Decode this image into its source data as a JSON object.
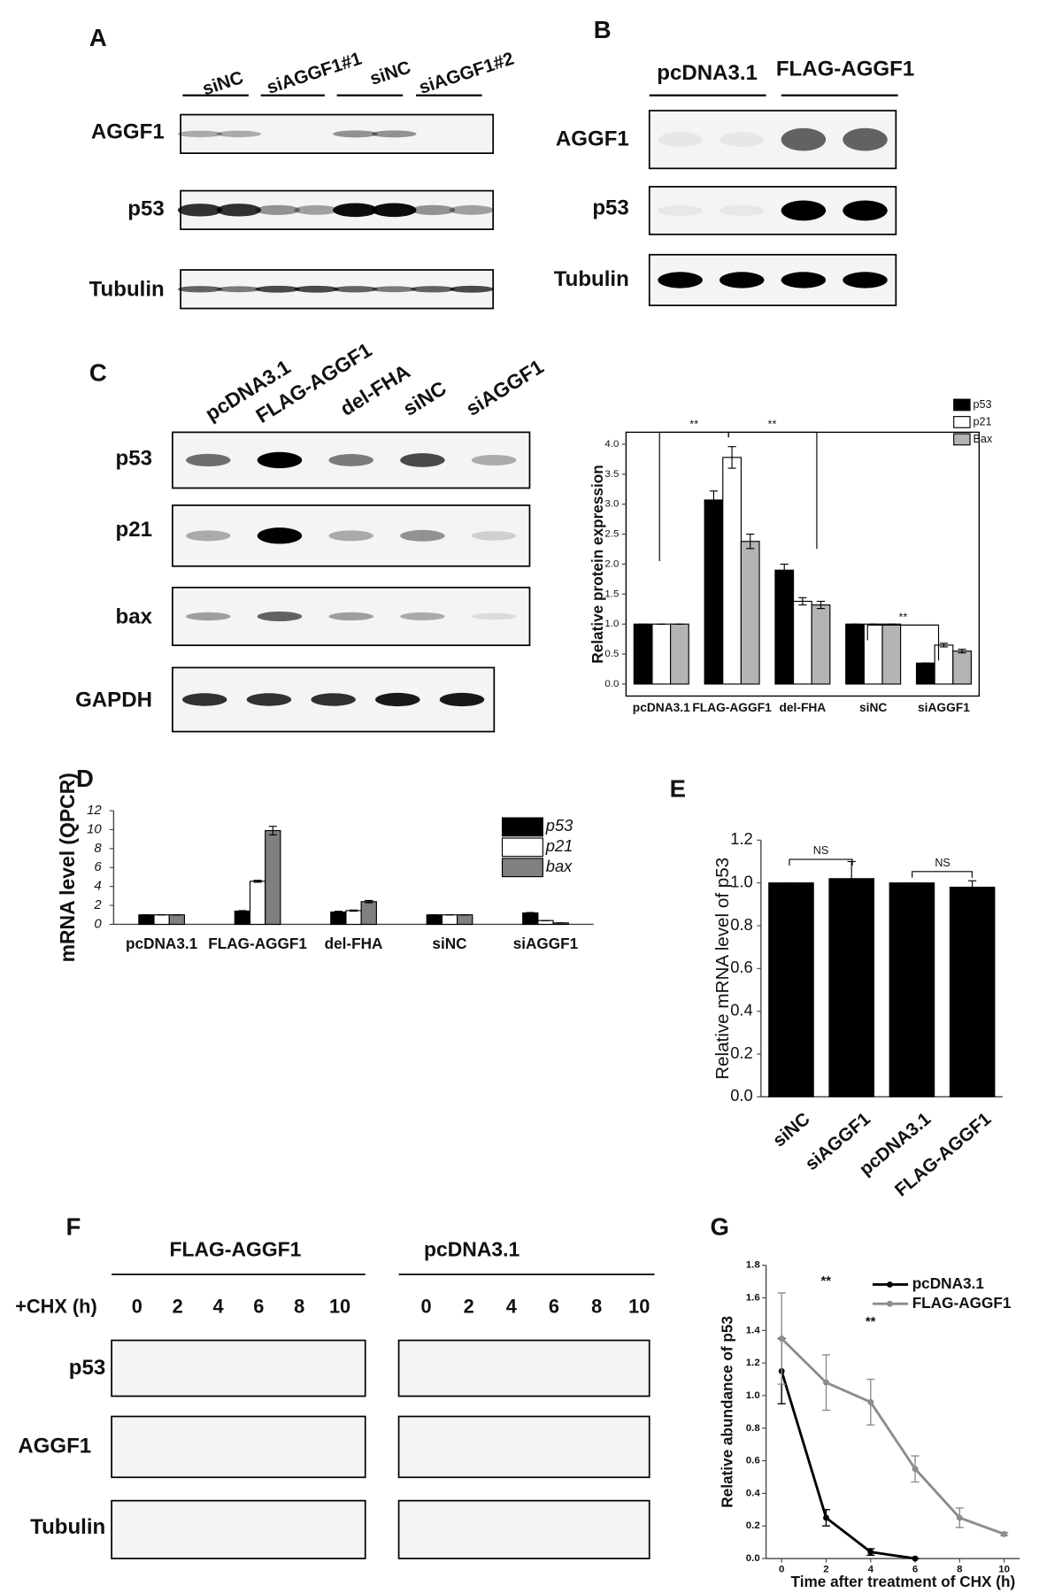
{
  "panel_labels": [
    "A",
    "B",
    "C",
    "D",
    "E",
    "F",
    "G"
  ],
  "blots": {
    "A": {
      "lanes": [
        "siNC",
        "siAGGF1#1",
        "siNC",
        "siAGGF1#2"
      ],
      "rows": [
        "AGGF1",
        "p53",
        "Tubulin"
      ]
    },
    "B": {
      "lanes": [
        "pcDNA3.1",
        "FLAG-AGGF1"
      ],
      "rows": [
        "AGGF1",
        "p53",
        "Tubulin"
      ]
    },
    "C": {
      "lanes": [
        "pcDNA3.1",
        "FLAG-AGGF1",
        "del-FHA",
        "siNC",
        "siAGGF1"
      ],
      "rows": [
        "p53",
        "p21",
        "bax",
        "GAPDH"
      ]
    },
    "F": {
      "groups": [
        "FLAG-AGGF1",
        "pcDNA3.1"
      ],
      "time_label": "+CHX (h)",
      "times": [
        "0",
        "2",
        "4",
        "6",
        "8",
        "10"
      ],
      "rows": [
        "p53",
        "AGGF1",
        "Tubulin"
      ]
    }
  },
  "chart_data": [
    {
      "type": "bar",
      "ylabel": "Relative protein expression",
      "categories": [
        "pcDNA3.1",
        "FLAG-AGGF1",
        "del-FHA",
        "siNC",
        "siAGGF1"
      ],
      "series": [
        {
          "name": "p53",
          "color": "#000000",
          "values": [
            1,
            3.07,
            1.9,
            1,
            0.35
          ],
          "errors": [
            0,
            0.15,
            0.1,
            0,
            0
          ]
        },
        {
          "name": "p21",
          "color": "#ffffff",
          "values": [
            1,
            3.78,
            1.38,
            1,
            0.65
          ],
          "errors": [
            0,
            0.18,
            0.06,
            0,
            0.03
          ]
        },
        {
          "name": "Bax",
          "color": "#b4b4b4",
          "values": [
            1,
            2.38,
            1.32,
            1,
            0.55
          ],
          "errors": [
            0,
            0.12,
            0.06,
            0,
            0.03
          ]
        }
      ],
      "ylim": [
        -0.2,
        4.2
      ],
      "yticks": [
        {
          "value": 0,
          "label": "0.0"
        },
        {
          "value": 0.5,
          "label": "0.5"
        },
        {
          "value": 1,
          "label": "1.0"
        },
        {
          "value": 1.5,
          "label": "1.5"
        },
        {
          "value": 2,
          "label": "2.0"
        },
        {
          "value": 2.5,
          "label": "2.5"
        },
        {
          "value": 3,
          "label": "3.0"
        },
        {
          "value": 3.5,
          "label": "3.5"
        },
        {
          "value": 4,
          "label": "4.0"
        }
      ],
      "annotations": [
        "**",
        "**",
        "**"
      ],
      "legend": "top-right"
    },
    {
      "type": "bar",
      "ylabel": "mRNA level (QPCR)",
      "categories": [
        "pcDNA3.1",
        "FLAG-AGGF1",
        "del-FHA",
        "siNC",
        "siAGGF1"
      ],
      "series": [
        {
          "name": "p53",
          "color": "#000000",
          "values": [
            1,
            1.4,
            1.3,
            1,
            1.2
          ],
          "errors": [
            0,
            0.05,
            0.08,
            0,
            0.05
          ]
        },
        {
          "name": "p21",
          "color": "#ffffff",
          "values": [
            1,
            4.55,
            1.45,
            1,
            0.4
          ],
          "errors": [
            0,
            0.1,
            0.06,
            0,
            0
          ]
        },
        {
          "name": "bax",
          "color": "#808080",
          "values": [
            1,
            9.9,
            2.4,
            1,
            0.15
          ],
          "errors": [
            0,
            0.45,
            0.12,
            0,
            0
          ]
        }
      ],
      "ylim": [
        0,
        12
      ],
      "yticks": [
        0,
        2,
        4,
        6,
        8,
        10,
        12
      ],
      "legend": "top-right"
    },
    {
      "type": "bar",
      "ylabel": "Relative mRNA level of p53",
      "categories": [
        "siNC",
        "siAGGF1",
        "pcDNA3.1",
        "FLAG-AGGF1"
      ],
      "series": [
        {
          "name": "p53",
          "color": "#000000",
          "values": [
            1,
            1.02,
            1,
            0.98
          ],
          "errors": [
            0,
            0.08,
            0,
            0.03
          ]
        }
      ],
      "ylim": [
        0,
        1.2
      ],
      "yticks": [
        {
          "value": 0,
          "label": "0.0"
        },
        {
          "value": 0.2,
          "label": "0.2"
        },
        {
          "value": 0.4,
          "label": "0.4"
        },
        {
          "value": 0.6,
          "label": "0.6"
        },
        {
          "value": 0.8,
          "label": "0.8"
        },
        {
          "value": 1,
          "label": "1.0"
        },
        {
          "value": 1.2,
          "label": "1.2"
        }
      ],
      "annotations": [
        "NS",
        "NS"
      ]
    },
    {
      "type": "line",
      "xlabel": "Time after treatment of CHX (h)",
      "ylabel": "Relative abundance of p53",
      "x": [
        0,
        2,
        4,
        6,
        8,
        10
      ],
      "series": [
        {
          "name": "pcDNA3.1",
          "color": "#000000",
          "values": [
            1.15,
            0.25,
            0.04,
            0,
            null,
            null
          ],
          "errors": [
            0.2,
            0.05,
            0.02,
            0,
            null,
            null
          ]
        },
        {
          "name": "FLAG-AGGF1",
          "color": "#8c8c8c",
          "values": [
            1.35,
            1.08,
            0.96,
            0.55,
            0.25,
            0.15
          ],
          "errors": [
            0.28,
            0.17,
            0.14,
            0.08,
            0.06,
            0.01
          ]
        }
      ],
      "xlim": [
        -0.7,
        10.7
      ],
      "xticks": [
        0,
        2,
        4,
        6,
        8,
        10
      ],
      "ylim": [
        0,
        1.8
      ],
      "yticks": [
        {
          "value": 0,
          "label": "0.0"
        },
        {
          "value": 0.2,
          "label": "0.2"
        },
        {
          "value": 0.4,
          "label": "0.4"
        },
        {
          "value": 0.6,
          "label": "0.6"
        },
        {
          "value": 0.8,
          "label": "0.8"
        },
        {
          "value": 1,
          "label": "1.0"
        },
        {
          "value": 1.2,
          "label": "1.2"
        },
        {
          "value": 1.4,
          "label": "1.4"
        },
        {
          "value": 1.6,
          "label": "1.6"
        },
        {
          "value": 1.8,
          "label": "1.8"
        }
      ],
      "annotations": [
        "**",
        "**"
      ],
      "legend": "top-right"
    }
  ]
}
